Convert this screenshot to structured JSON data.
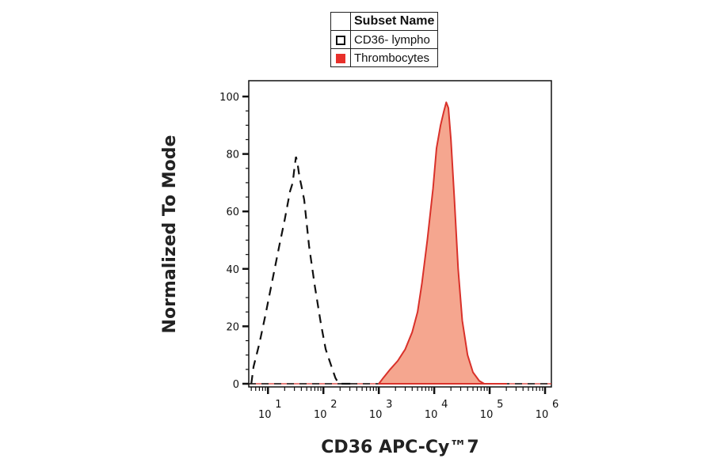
{
  "chart_data": {
    "type": "area",
    "xlabel": "CD36 APC-Cy™7",
    "ylabel": "Normalized To Mode",
    "xscale": "log",
    "xlim": [
      4.5,
      1300000
    ],
    "ylim": [
      0,
      100
    ],
    "yticks": [
      "0",
      "20",
      "40",
      "60",
      "80",
      "100"
    ],
    "xticks": [
      {
        "base": "10",
        "exp": "1"
      },
      {
        "base": "10",
        "exp": "2"
      },
      {
        "base": "10",
        "exp": "3"
      },
      {
        "base": "10",
        "exp": "4"
      },
      {
        "base": "10",
        "exp": "5"
      },
      {
        "base": "10",
        "exp": "6"
      }
    ],
    "legend": {
      "header": "Subset Name",
      "placement": "top",
      "entries": [
        "CD36- lympho",
        "Thrombocytes"
      ]
    },
    "series": [
      {
        "name": "CD36- lympho",
        "style": "dashed",
        "color": "#111111",
        "x": [
          5,
          5.5,
          7,
          9,
          12,
          16,
          20,
          25,
          28,
          30,
          32,
          34,
          37,
          40,
          45,
          55,
          70,
          90,
          110,
          140,
          165,
          190,
          250,
          400
        ],
        "y": [
          0,
          6,
          14,
          24,
          36,
          48,
          57,
          67,
          70,
          75,
          79,
          77,
          72,
          69,
          64,
          48,
          34,
          21,
          12,
          6,
          2,
          0,
          0,
          0
        ]
      },
      {
        "name": "Thrombocytes",
        "style": "filled",
        "color": "#d9312a",
        "fill": "#f5a68f",
        "x": [
          1000,
          1200,
          1600,
          2200,
          3000,
          4000,
          5000,
          6000,
          7500,
          9500,
          11000,
          13000,
          15000,
          16500,
          18000,
          20000,
          23000,
          27000,
          32000,
          40000,
          50000,
          65000,
          80000,
          200000
        ],
        "y": [
          0,
          2,
          5,
          8,
          12,
          18,
          25,
          35,
          50,
          68,
          82,
          90,
          95,
          98,
          96,
          85,
          65,
          40,
          22,
          10,
          4,
          1,
          0,
          0
        ]
      }
    ]
  }
}
